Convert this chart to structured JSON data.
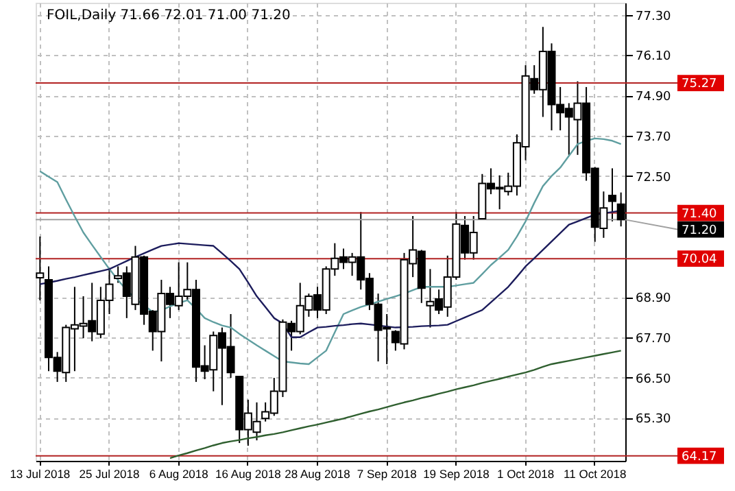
{
  "chart_data": {
    "type": "candlestick",
    "title": "FOIL,Daily 71.66 72.01 71.00 71.20",
    "categories": [
      "13 Jul 2018",
      null,
      null,
      null,
      null,
      null,
      null,
      null,
      "25 Jul 2018",
      null,
      null,
      null,
      null,
      null,
      null,
      null,
      "6 Aug 2018",
      null,
      null,
      null,
      null,
      null,
      null,
      null,
      "16 Aug 2018",
      null,
      null,
      null,
      null,
      null,
      null,
      null,
      "28 Aug 2018",
      null,
      null,
      null,
      null,
      null,
      null,
      null,
      "7 Sep 2018",
      null,
      null,
      null,
      null,
      null,
      null,
      null,
      "19 Sep 2018",
      null,
      null,
      null,
      null,
      null,
      null,
      null,
      "1 Oct 2018",
      null,
      null,
      null,
      null,
      null,
      null,
      null,
      "11 Oct 2018",
      null,
      null,
      null
    ],
    "ohlc": [
      [
        69.47,
        70.7,
        68.8,
        69.61
      ],
      [
        69.41,
        69.81,
        66.69,
        67.1
      ],
      [
        67.1,
        67.26,
        66.37,
        66.69
      ],
      [
        66.65,
        68.07,
        66.37,
        67.99
      ],
      [
        67.95,
        69.2,
        66.69,
        68.07
      ],
      [
        68.03,
        68.92,
        67.67,
        68.11
      ],
      [
        68.19,
        69.32,
        67.58,
        67.87
      ],
      [
        67.79,
        69.2,
        67.67,
        68.8
      ],
      [
        68.8,
        69.73,
        68.39,
        69.28
      ],
      [
        69.45,
        69.81,
        69.32,
        69.53
      ],
      [
        69.61,
        69.81,
        68.27,
        68.92
      ],
      [
        68.68,
        70.42,
        68.51,
        70.09
      ],
      [
        70.09,
        70.13,
        68.07,
        68.39
      ],
      [
        68.47,
        68.51,
        67.3,
        67.87
      ],
      [
        67.87,
        69.41,
        66.98,
        69.0
      ],
      [
        69.0,
        69.2,
        68.27,
        68.68
      ],
      [
        68.64,
        69.93,
        68.51,
        68.92
      ],
      [
        68.92,
        69.93,
        68.8,
        69.12
      ],
      [
        69.12,
        69.41,
        66.37,
        66.81
      ],
      [
        66.85,
        67.46,
        66.45,
        66.69
      ],
      [
        66.73,
        67.87,
        66.09,
        67.75
      ],
      [
        67.83,
        67.99,
        65.68,
        67.38
      ],
      [
        67.42,
        68.39,
        66.49,
        66.65
      ],
      [
        66.53,
        66.53,
        64.55,
        64.95
      ],
      [
        64.95,
        65.84,
        64.47,
        65.44
      ],
      [
        64.87,
        65.76,
        64.63,
        65.19
      ],
      [
        65.28,
        65.76,
        65.19,
        65.48
      ],
      [
        65.44,
        66.49,
        65.36,
        66.09
      ],
      [
        66.09,
        68.23,
        65.92,
        68.15
      ],
      [
        68.11,
        68.19,
        67.3,
        67.87
      ],
      [
        67.87,
        69.32,
        67.79,
        68.64
      ],
      [
        68.51,
        69.0,
        68.31,
        68.92
      ],
      [
        68.96,
        69.2,
        68.27,
        68.51
      ],
      [
        68.51,
        69.81,
        68.39,
        69.73
      ],
      [
        69.73,
        70.5,
        69.53,
        70.05
      ],
      [
        70.09,
        70.34,
        69.73,
        69.93
      ],
      [
        69.93,
        70.21,
        69.53,
        70.09
      ],
      [
        70.09,
        71.43,
        69.12,
        69.41
      ],
      [
        69.45,
        69.61,
        68.51,
        68.68
      ],
      [
        68.68,
        69.0,
        66.98,
        67.91
      ],
      [
        67.99,
        68.39,
        66.9,
        67.95
      ],
      [
        67.87,
        67.91,
        67.3,
        67.54
      ],
      [
        67.5,
        70.21,
        67.34,
        70.01
      ],
      [
        69.89,
        71.31,
        69.49,
        70.3
      ],
      [
        70.26,
        70.3,
        68.72,
        69.16
      ],
      [
        68.64,
        69.73,
        67.99,
        68.76
      ],
      [
        68.84,
        69.12,
        68.39,
        68.51
      ],
      [
        68.6,
        70.13,
        68.31,
        69.49
      ],
      [
        69.49,
        71.43,
        69.41,
        71.07
      ],
      [
        71.03,
        71.31,
        70.01,
        70.21
      ],
      [
        70.21,
        71.31,
        70.01,
        70.82
      ],
      [
        71.23,
        72.56,
        71.23,
        72.28
      ],
      [
        72.28,
        72.73,
        71.96,
        72.12
      ],
      [
        72.16,
        72.52,
        71.51,
        72.12
      ],
      [
        72.04,
        72.6,
        71.92,
        72.2
      ],
      [
        72.2,
        73.74,
        71.92,
        73.49
      ],
      [
        73.37,
        75.8,
        72.97,
        75.48
      ],
      [
        75.4,
        75.8,
        74.95,
        75.07
      ],
      [
        75.07,
        76.94,
        74.26,
        76.21
      ],
      [
        76.21,
        76.45,
        73.86,
        74.63
      ],
      [
        74.63,
        75.15,
        73.86,
        74.39
      ],
      [
        74.51,
        74.67,
        73.13,
        74.26
      ],
      [
        74.18,
        75.32,
        73.13,
        74.67
      ],
      [
        74.67,
        75.15,
        72.36,
        72.6
      ],
      [
        72.73,
        72.77,
        70.54,
        70.98
      ],
      [
        70.94,
        72.04,
        70.66,
        71.55
      ],
      [
        71.92,
        72.73,
        71.15,
        71.75
      ],
      [
        71.66,
        72.01,
        71.0,
        71.2
      ]
    ],
    "series": [
      {
        "type": "line",
        "color": "#5f9ea0",
        "values": [
          72.64,
          72.48,
          72.32,
          71.8,
          71.3,
          70.82,
          70.45,
          70.09,
          69.73,
          69.4,
          69.1,
          68.85,
          68.65,
          68.45,
          68.5,
          68.62,
          68.72,
          68.8,
          68.55,
          68.27,
          68.15,
          68.05,
          67.99,
          67.8,
          67.63,
          67.46,
          67.3,
          67.14,
          66.98,
          66.95,
          66.92,
          66.9,
          67.1,
          67.3,
          67.85,
          68.39,
          68.5,
          68.6,
          68.68,
          68.76,
          68.84,
          68.92,
          69.0,
          69.1,
          69.2,
          69.2,
          69.2,
          69.2,
          69.24,
          69.28,
          69.32,
          69.58,
          69.85,
          70.07,
          70.3,
          70.7,
          71.15,
          71.7,
          72.2,
          72.5,
          72.75,
          73.1,
          73.45,
          73.55,
          73.62,
          73.6,
          73.55,
          73.45
        ]
      },
      {
        "type": "line",
        "color": "#1c1c5c",
        "values": [
          69.28,
          69.33,
          69.38,
          69.44,
          69.49,
          69.55,
          69.61,
          69.67,
          69.73,
          69.85,
          69.97,
          70.09,
          70.2,
          70.31,
          70.42,
          70.46,
          70.5,
          70.48,
          70.46,
          70.44,
          70.42,
          70.2,
          69.97,
          69.73,
          69.33,
          68.92,
          68.6,
          68.27,
          68.11,
          67.7,
          67.7,
          67.85,
          67.99,
          68.01,
          68.04,
          68.06,
          68.09,
          68.11,
          68.08,
          68.05,
          68.02,
          67.99,
          68.0,
          68.01,
          68.03,
          68.04,
          68.05,
          68.07,
          68.18,
          68.29,
          68.4,
          68.51,
          68.74,
          68.97,
          69.2,
          69.5,
          69.81,
          70.05,
          70.3,
          70.55,
          70.8,
          71.05,
          71.15,
          71.25,
          71.35,
          71.39,
          71.43,
          71.47
        ]
      },
      {
        "type": "line",
        "color": "#2f5f2f",
        "values": [
          null,
          null,
          null,
          null,
          null,
          null,
          null,
          null,
          null,
          null,
          null,
          null,
          null,
          null,
          null,
          64.1,
          64.18,
          64.25,
          64.33,
          64.4,
          64.48,
          64.55,
          64.6,
          64.64,
          64.69,
          64.73,
          64.78,
          64.82,
          64.87,
          64.93,
          64.99,
          65.05,
          65.1,
          65.16,
          65.22,
          65.28,
          65.35,
          65.42,
          65.49,
          65.55,
          65.62,
          65.69,
          65.76,
          65.82,
          65.89,
          65.95,
          66.02,
          66.08,
          66.15,
          66.21,
          66.27,
          66.34,
          66.4,
          66.46,
          66.53,
          66.59,
          66.65,
          66.73,
          66.82,
          66.9,
          66.95,
          67.0,
          67.05,
          67.1,
          67.15,
          67.2,
          67.25,
          67.3
        ]
      }
    ],
    "ylim": [
      64.02,
      77.66
    ],
    "yticks": [
      {
        "value": 77.3,
        "label": "77.30"
      },
      {
        "value": 76.1,
        "label": "76.10"
      },
      {
        "value": 74.9,
        "label": "74.90"
      },
      {
        "value": 73.7,
        "label": "73.70"
      },
      {
        "value": 72.5,
        "label": "72.50"
      },
      {
        "value": 68.9,
        "label": "68.90"
      },
      {
        "value": 67.7,
        "label": "67.70"
      },
      {
        "value": 66.5,
        "label": "66.50"
      },
      {
        "value": 65.3,
        "label": "65.30"
      }
    ],
    "ref_lines": [
      {
        "axis": "y",
        "value": 75.27,
        "label": "75.27",
        "color": "#b22222"
      },
      {
        "axis": "y",
        "value": 71.4,
        "label": "71.40",
        "color": "#b22222"
      },
      {
        "axis": "y",
        "value": 71.2,
        "label": "71.20",
        "color": "#a0a0a0"
      },
      {
        "axis": "y",
        "value": 70.04,
        "label": "70.04",
        "color": "#b22222"
      },
      {
        "axis": "y",
        "value": 64.17,
        "label": "64.17",
        "color": "#b22222"
      }
    ],
    "grid": true
  }
}
